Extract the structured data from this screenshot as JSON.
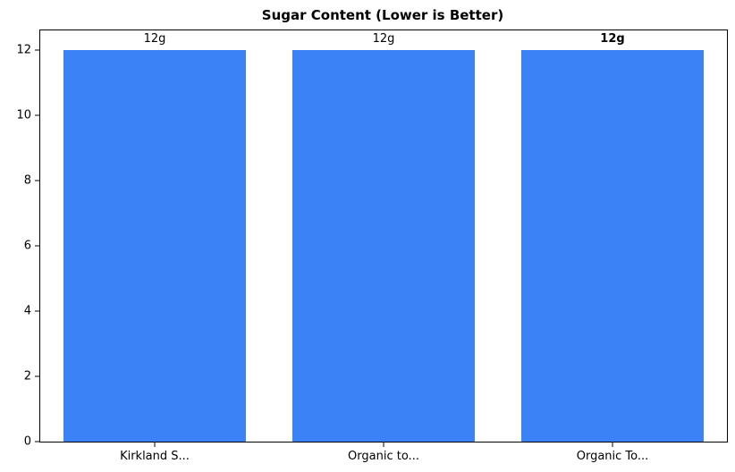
{
  "chart_data": {
    "type": "bar",
    "title": "Sugar Content (Lower is Better)",
    "categories": [
      "Kirkland S...",
      "Organic to...",
      "Organic To..."
    ],
    "values": [
      12,
      12,
      12
    ],
    "bar_labels": [
      "12g",
      "12g",
      "12g"
    ],
    "bar_label_bold": [
      false,
      false,
      true
    ],
    "bar_color": "#3b82f6",
    "xlabel": "",
    "ylabel": "",
    "ylim": [
      0,
      12.6
    ],
    "yticks": [
      0,
      2,
      4,
      6,
      8,
      10,
      12
    ],
    "bar_width_fraction": 0.8,
    "grid": false,
    "legend": null,
    "frame": "full-box",
    "background_color": "#ffffff",
    "text_color": "#000000"
  }
}
